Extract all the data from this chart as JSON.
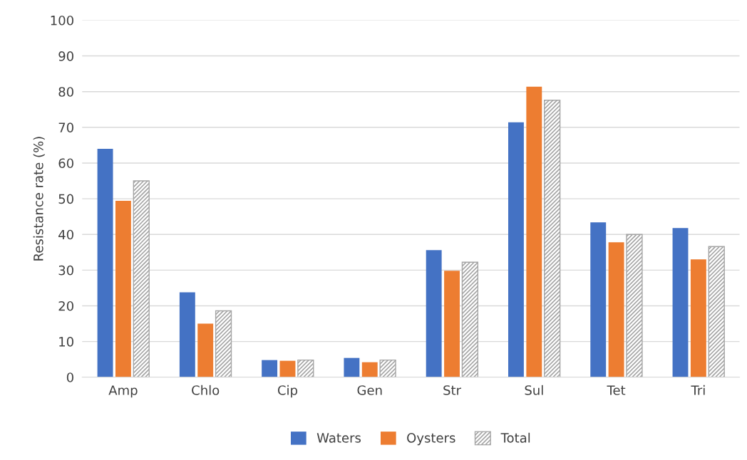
{
  "chart_data": {
    "type": "bar",
    "ylabel": "Resistance rate (%)",
    "categories": [
      "Amp",
      "Chlo",
      "Cip",
      "Gen",
      "Str",
      "Sul",
      "Tet",
      "Tri"
    ],
    "series": [
      {
        "name": "Waters",
        "color": "#4472c4",
        "values": [
          64.0,
          23.8,
          4.8,
          5.4,
          35.6,
          71.4,
          43.4,
          41.8
        ]
      },
      {
        "name": "Oysters",
        "color": "#ed7d31",
        "values": [
          49.4,
          15.0,
          4.6,
          4.2,
          29.8,
          81.4,
          37.8,
          33.0
        ]
      },
      {
        "name": "Total",
        "color": "#a5a5a5",
        "values": [
          55.0,
          18.6,
          4.8,
          4.8,
          32.2,
          77.6,
          40.0,
          36.6
        ]
      }
    ],
    "ylim": [
      0,
      100
    ],
    "yticks": [
      0,
      10,
      20,
      30,
      40,
      50,
      60,
      70,
      80,
      90,
      100
    ],
    "grid": "y",
    "legend": "bottom"
  }
}
